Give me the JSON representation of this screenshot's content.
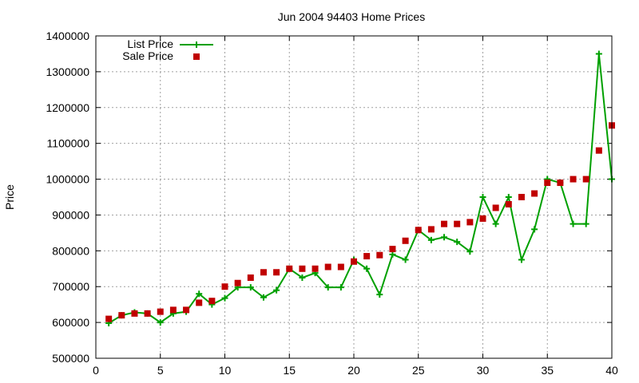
{
  "chart_data": {
    "type": "line",
    "title": "Jun 2004 94403 Home Prices",
    "xlabel": "",
    "ylabel": "Price",
    "xlim": [
      0,
      40
    ],
    "ylim": [
      500000,
      1400000
    ],
    "xticks": [
      0,
      5,
      10,
      15,
      20,
      25,
      30,
      35,
      40
    ],
    "yticks": [
      500000,
      600000,
      700000,
      800000,
      900000,
      1000000,
      1100000,
      1200000,
      1300000,
      1400000
    ],
    "grid": true,
    "legend_position": "top-left",
    "series": [
      {
        "name": "List Price",
        "style": "line-plus",
        "color": "#00a000",
        "x": [
          1,
          2,
          3,
          4,
          5,
          6,
          7,
          8,
          9,
          10,
          11,
          12,
          13,
          14,
          15,
          16,
          17,
          18,
          19,
          20,
          21,
          22,
          23,
          24,
          25,
          26,
          27,
          28,
          29,
          30,
          31,
          32,
          33,
          34,
          35,
          36,
          37,
          38,
          39,
          40
        ],
        "values": [
          598000,
          620000,
          628000,
          625000,
          600000,
          625000,
          630000,
          680000,
          650000,
          668000,
          698000,
          698000,
          670000,
          690000,
          750000,
          725000,
          738000,
          698000,
          698000,
          775000,
          750000,
          678000,
          790000,
          775000,
          858000,
          830000,
          838000,
          825000,
          798000,
          950000,
          875000,
          950000,
          775000,
          860000,
          1000000,
          990000,
          875000,
          875000,
          1350000,
          1000000
        ]
      },
      {
        "name": "Sale Price",
        "style": "square-points",
        "color": "#c00000",
        "x": [
          1,
          2,
          3,
          4,
          5,
          6,
          7,
          8,
          9,
          10,
          11,
          12,
          13,
          14,
          15,
          16,
          17,
          18,
          19,
          20,
          21,
          22,
          23,
          24,
          25,
          26,
          27,
          28,
          29,
          30,
          31,
          32,
          33,
          34,
          35,
          36,
          37,
          38,
          39,
          40
        ],
        "values": [
          610000,
          620000,
          625000,
          625000,
          630000,
          635000,
          635000,
          655000,
          660000,
          700000,
          710000,
          725000,
          740000,
          740000,
          750000,
          750000,
          750000,
          755000,
          755000,
          770000,
          785000,
          788000,
          805000,
          828000,
          858000,
          860000,
          875000,
          875000,
          880000,
          890000,
          920000,
          930000,
          950000,
          960000,
          990000,
          990000,
          1000000,
          1000000,
          1080000,
          1150000
        ]
      }
    ]
  }
}
